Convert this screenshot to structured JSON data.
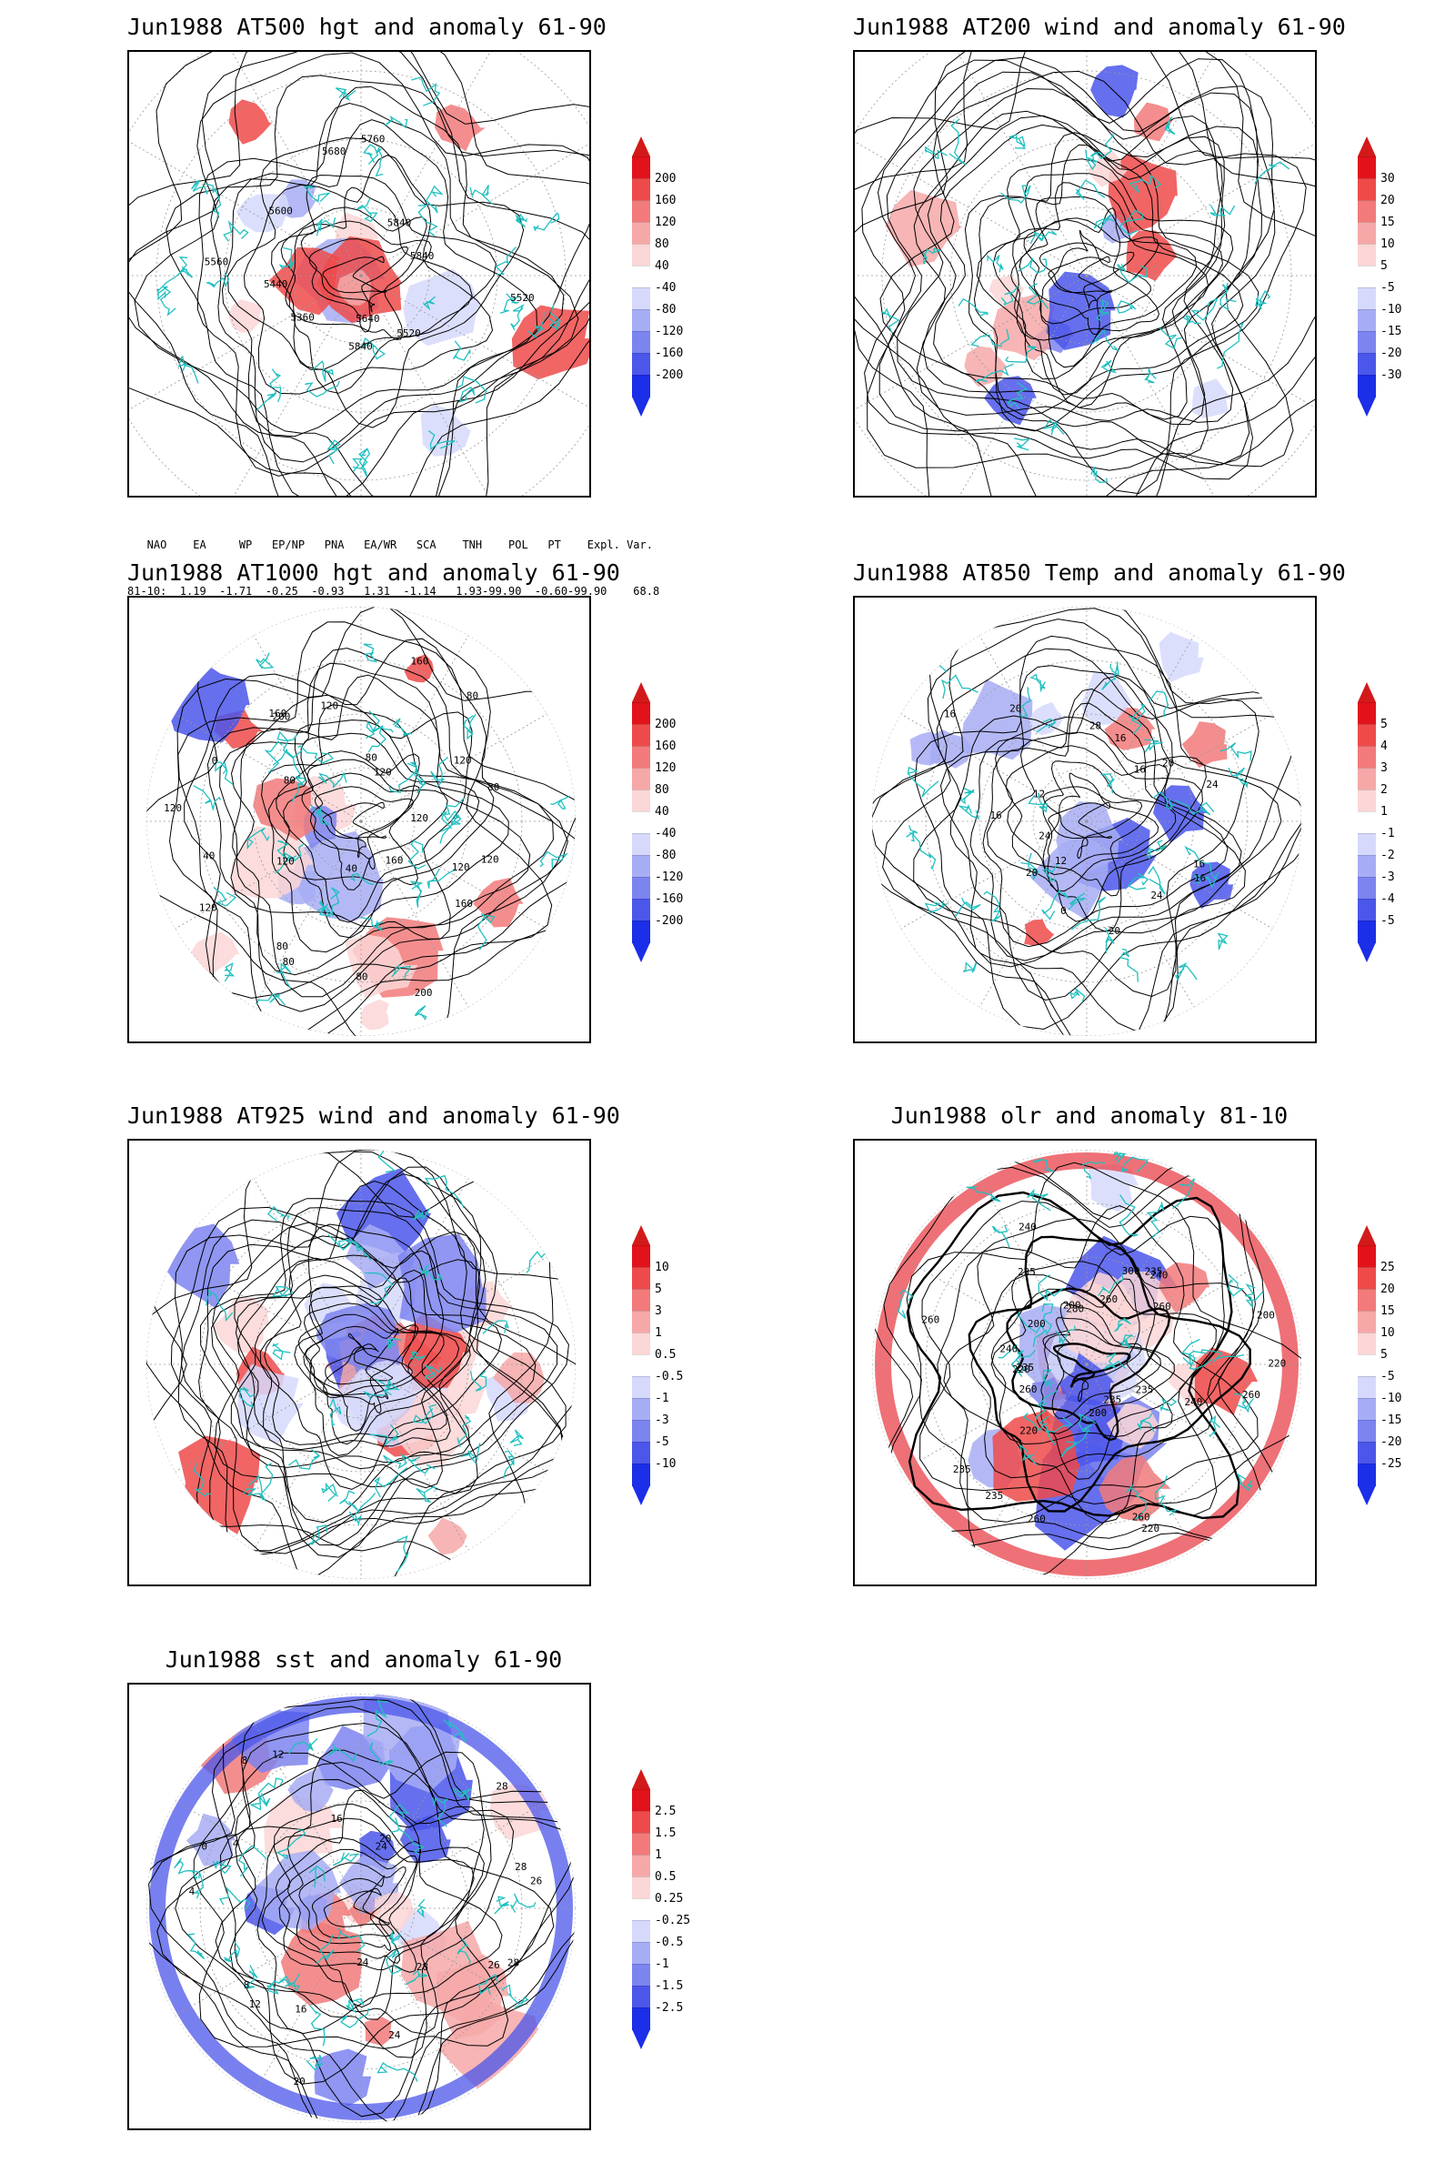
{
  "panels": [
    {
      "title": "Jun1988 AT500 hgt and anomaly 61-90",
      "colorbar": [
        "200",
        "160",
        "120",
        "80",
        "40",
        "-40",
        "-80",
        "-120",
        "-160",
        "-200"
      ],
      "contour_labels": [
        "5520",
        "5520",
        "5640",
        "5840",
        "5360",
        "5440",
        "5560",
        "5600",
        "5680",
        "5760",
        "5840",
        "5840"
      ]
    },
    {
      "title": "Jun1988 AT200 wind and anomaly 61-90",
      "colorbar": [
        "30",
        "20",
        "15",
        "10",
        "5",
        "-5",
        "-10",
        "-15",
        "-20",
        "-30"
      ],
      "contour_labels": []
    },
    {
      "title": "Jun1988 AT1000 hgt and anomaly 61-90",
      "colorbar": [
        "200",
        "160",
        "120",
        "80",
        "40",
        "-40",
        "-80",
        "-120",
        "-160",
        "-200"
      ],
      "contour_labels": [
        "120",
        "120",
        "160",
        "160",
        "200",
        "80",
        "40",
        "80",
        "80",
        "120",
        "120",
        "40",
        "120",
        "0",
        "80",
        "160",
        "200",
        "120",
        "80",
        "120",
        "160",
        "80",
        "120",
        "80",
        "120"
      ]
    },
    {
      "title": "Jun1988 AT850 Temp and anomaly 61-90",
      "colorbar": [
        "5",
        "4",
        "3",
        "2",
        "1",
        "-1",
        "-2",
        "-3",
        "-4",
        "-5"
      ],
      "contour_labels": [
        "16",
        "16",
        "24",
        "20",
        "0",
        "12",
        "20",
        "24",
        "16",
        "12",
        "16",
        "20",
        "28",
        "16",
        "16",
        "20",
        "24"
      ]
    },
    {
      "title": "Jun1988 AT925 wind and anomaly 61-90",
      "colorbar": [
        "10",
        "5",
        "3",
        "1",
        "0.5",
        "-0.5",
        "-1",
        "-3",
        "-5",
        "-10"
      ],
      "contour_labels": []
    },
    {
      "title": "Jun1988 olr and anomaly 81-10",
      "colorbar": [
        "25",
        "20",
        "15",
        "10",
        "5",
        "-5",
        "-10",
        "-15",
        "-20",
        "-25"
      ],
      "contour_labels": [
        "260",
        "240",
        "235",
        "235",
        "260",
        "220",
        "200",
        "260",
        "235",
        "220",
        "235",
        "260",
        "235",
        "220",
        "240",
        "260",
        "200",
        "235",
        "240",
        "200",
        "280",
        "260",
        "300",
        "235",
        "240",
        "260",
        "200",
        "220"
      ]
    },
    {
      "title": "Jun1988 sst and anomaly 61-90",
      "colorbar": [
        "2.5",
        "1.5",
        "1",
        "0.5",
        "0.25",
        "-0.25",
        "-0.5",
        "-1",
        "-1.5",
        "-2.5"
      ],
      "contour_labels": [
        "28",
        "26",
        "28",
        "24",
        "24",
        "20",
        "16",
        "12",
        "8",
        "4",
        "0",
        "4",
        "8",
        "12",
        "16",
        "20",
        "24",
        "28",
        "28",
        "26"
      ]
    }
  ],
  "indices": {
    "header": "   NAO    EA     WP   EP/NP   PNA   EA/WR   SCA    TNH    POL   PT    Expl. Var.",
    "row": "81-10:  1.19  -1.71  -0.25  -0.93   1.31  -1.14   1.93-99.90  -0.60-99.90    68.8"
  },
  "colors": {
    "coast": "#20c0c0",
    "pos": "#e8414a",
    "neg": "#3b4ee8",
    "contour": "#000000"
  }
}
